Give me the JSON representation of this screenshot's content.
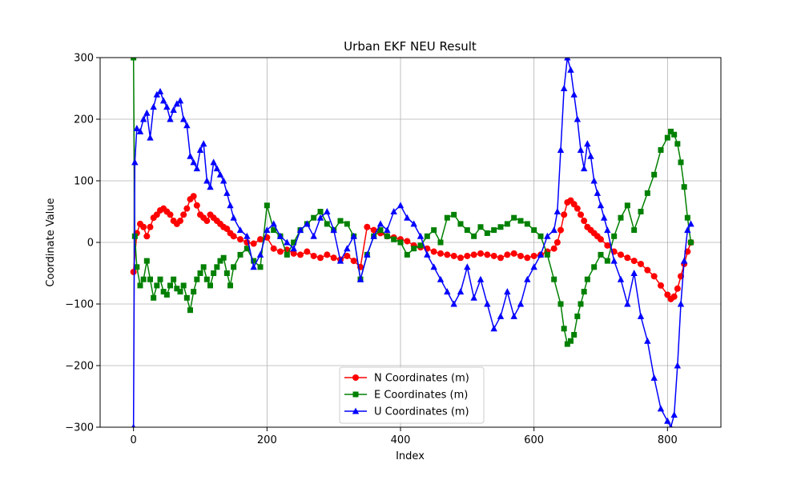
{
  "chart_data": {
    "type": "line",
    "title": "Urban EKF NEU Result",
    "xlabel": "Index",
    "ylabel": "Coordinate Value",
    "xlim": [
      -50,
      880
    ],
    "ylim": [
      -300,
      300
    ],
    "xticks": [
      0,
      200,
      400,
      600,
      800
    ],
    "yticks": [
      -300,
      -200,
      -100,
      0,
      100,
      200,
      300
    ],
    "grid": true,
    "legend_position": "lower-center",
    "series": [
      {
        "name": "N Coordinates (m)",
        "color": "#ff0000",
        "marker": "circle",
        "x": [
          0,
          5,
          10,
          15,
          20,
          25,
          30,
          35,
          40,
          45,
          50,
          55,
          60,
          65,
          70,
          75,
          80,
          85,
          90,
          95,
          100,
          105,
          110,
          115,
          120,
          125,
          130,
          135,
          140,
          145,
          150,
          160,
          170,
          180,
          190,
          200,
          210,
          220,
          230,
          240,
          250,
          260,
          270,
          280,
          290,
          300,
          310,
          320,
          330,
          340,
          350,
          360,
          370,
          380,
          390,
          400,
          410,
          420,
          430,
          440,
          450,
          460,
          470,
          480,
          490,
          500,
          510,
          520,
          530,
          540,
          550,
          560,
          570,
          580,
          590,
          600,
          610,
          620,
          630,
          635,
          640,
          645,
          650,
          655,
          660,
          665,
          670,
          675,
          680,
          685,
          690,
          695,
          700,
          710,
          720,
          730,
          740,
          750,
          760,
          770,
          780,
          790,
          800,
          805,
          810,
          815,
          820,
          825,
          830,
          835
        ],
        "y": [
          -48,
          15,
          30,
          25,
          10,
          25,
          40,
          45,
          52,
          55,
          50,
          45,
          35,
          30,
          35,
          45,
          55,
          70,
          75,
          60,
          45,
          40,
          35,
          45,
          40,
          35,
          30,
          25,
          22,
          15,
          10,
          5,
          0,
          -2,
          5,
          8,
          -10,
          -15,
          -12,
          -18,
          -20,
          -15,
          -22,
          -25,
          -20,
          -25,
          -28,
          -22,
          -30,
          -40,
          25,
          20,
          15,
          10,
          8,
          5,
          2,
          -5,
          -8,
          -10,
          -15,
          -18,
          -20,
          -22,
          -25,
          -22,
          -20,
          -18,
          -20,
          -22,
          -25,
          -20,
          -18,
          -22,
          -25,
          -22,
          -20,
          -15,
          -10,
          0,
          20,
          45,
          65,
          68,
          62,
          55,
          45,
          35,
          25,
          20,
          15,
          10,
          5,
          -5,
          -15,
          -20,
          -25,
          -30,
          -35,
          -45,
          -55,
          -70,
          -85,
          -92,
          -88,
          -75,
          -55,
          -35,
          -15,
          0
        ]
      },
      {
        "name": "E Coordinates (m)",
        "color": "#008000",
        "marker": "square",
        "x": [
          0,
          2,
          5,
          10,
          15,
          20,
          25,
          30,
          35,
          40,
          45,
          50,
          55,
          60,
          65,
          70,
          75,
          80,
          85,
          90,
          95,
          100,
          105,
          110,
          115,
          120,
          125,
          130,
          135,
          140,
          145,
          150,
          160,
          170,
          180,
          190,
          200,
          210,
          220,
          230,
          240,
          250,
          260,
          270,
          280,
          290,
          300,
          310,
          320,
          330,
          340,
          350,
          360,
          370,
          380,
          390,
          400,
          410,
          420,
          430,
          440,
          450,
          460,
          470,
          480,
          490,
          500,
          510,
          520,
          530,
          540,
          550,
          560,
          570,
          580,
          590,
          600,
          610,
          620,
          630,
          640,
          645,
          650,
          655,
          660,
          665,
          670,
          675,
          680,
          690,
          700,
          710,
          720,
          730,
          740,
          750,
          760,
          770,
          780,
          790,
          800,
          805,
          810,
          815,
          820,
          825,
          830,
          835
        ],
        "y": [
          300,
          10,
          -40,
          -70,
          -60,
          -30,
          -60,
          -90,
          -70,
          -60,
          -80,
          -85,
          -70,
          -60,
          -75,
          -80,
          -70,
          -90,
          -110,
          -80,
          -60,
          -50,
          -40,
          -60,
          -70,
          -50,
          -40,
          -30,
          -25,
          -50,
          -70,
          -40,
          -20,
          -10,
          -30,
          -40,
          60,
          20,
          10,
          -20,
          0,
          20,
          30,
          40,
          50,
          30,
          20,
          35,
          30,
          10,
          -60,
          -20,
          10,
          20,
          10,
          5,
          0,
          -20,
          -10,
          -5,
          10,
          20,
          0,
          40,
          45,
          30,
          20,
          10,
          25,
          15,
          20,
          25,
          30,
          40,
          35,
          30,
          20,
          10,
          -20,
          -60,
          -100,
          -140,
          -165,
          -160,
          -150,
          -120,
          -100,
          -80,
          -60,
          -40,
          -20,
          -30,
          10,
          40,
          60,
          20,
          50,
          80,
          110,
          150,
          170,
          180,
          175,
          160,
          130,
          90,
          40,
          0
        ]
      },
      {
        "name": "U Coordinates (m)",
        "color": "#0000ff",
        "marker": "triangle",
        "x": [
          0,
          2,
          5,
          10,
          15,
          20,
          25,
          30,
          35,
          40,
          45,
          50,
          55,
          60,
          65,
          70,
          75,
          80,
          85,
          90,
          95,
          100,
          105,
          110,
          115,
          120,
          125,
          130,
          135,
          140,
          145,
          150,
          160,
          170,
          180,
          190,
          200,
          210,
          220,
          230,
          240,
          250,
          260,
          270,
          280,
          290,
          300,
          310,
          320,
          330,
          340,
          350,
          360,
          370,
          380,
          390,
          400,
          410,
          420,
          430,
          440,
          450,
          460,
          470,
          480,
          490,
          500,
          510,
          520,
          530,
          540,
          550,
          560,
          570,
          580,
          590,
          600,
          610,
          620,
          630,
          635,
          640,
          645,
          650,
          655,
          660,
          665,
          670,
          675,
          680,
          685,
          690,
          695,
          700,
          705,
          710,
          720,
          730,
          740,
          750,
          760,
          770,
          780,
          790,
          800,
          805,
          810,
          815,
          820,
          825,
          830,
          835
        ],
        "y": [
          -300,
          130,
          185,
          180,
          200,
          210,
          170,
          220,
          240,
          245,
          230,
          220,
          200,
          215,
          225,
          230,
          200,
          190,
          140,
          130,
          120,
          150,
          160,
          100,
          90,
          130,
          120,
          110,
          100,
          80,
          60,
          40,
          20,
          10,
          -40,
          -20,
          20,
          30,
          10,
          0,
          -10,
          20,
          30,
          10,
          40,
          50,
          20,
          -30,
          -10,
          10,
          -60,
          -20,
          10,
          30,
          20,
          50,
          60,
          40,
          30,
          10,
          -20,
          -40,
          -60,
          -80,
          -100,
          -80,
          -40,
          -90,
          -60,
          -100,
          -140,
          -120,
          -80,
          -120,
          -100,
          -60,
          -40,
          -20,
          10,
          20,
          50,
          150,
          250,
          300,
          280,
          240,
          200,
          150,
          120,
          160,
          140,
          100,
          80,
          60,
          40,
          20,
          -30,
          -60,
          -100,
          -50,
          -120,
          -160,
          -220,
          -270,
          -290,
          -300,
          -280,
          -200,
          -100,
          -30,
          20,
          30
        ]
      }
    ]
  }
}
